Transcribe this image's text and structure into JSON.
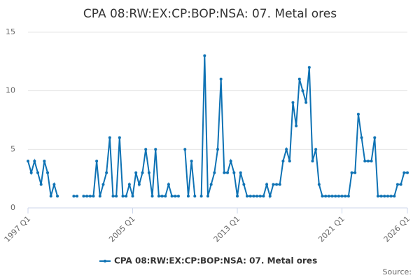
{
  "chart_data": {
    "type": "line",
    "title": "CPA 08:RW:EX:CP:BOP:NSA: 07. Metal ores",
    "source": "Source:",
    "categories": [
      "1997 Q1",
      null,
      null,
      null,
      null,
      null,
      null,
      null,
      null,
      null,
      null,
      null,
      null,
      null,
      null,
      null,
      null,
      null,
      null,
      null,
      null,
      null,
      null,
      null,
      null,
      null,
      null,
      null,
      null,
      null,
      null,
      null,
      "2005 Q1",
      null,
      null,
      null,
      null,
      null,
      null,
      null,
      null,
      null,
      null,
      null,
      null,
      null,
      null,
      null,
      null,
      null,
      null,
      null,
      null,
      null,
      null,
      null,
      null,
      null,
      null,
      null,
      null,
      null,
      null,
      null,
      "2013 Q1",
      null,
      null,
      null,
      null,
      null,
      null,
      null,
      null,
      null,
      null,
      null,
      null,
      null,
      null,
      null,
      null,
      null,
      null,
      null,
      null,
      null,
      null,
      null,
      null,
      null,
      null,
      null,
      null,
      null,
      null,
      null,
      "2021 Q1",
      null,
      null,
      null,
      null,
      null,
      null,
      null,
      null,
      null,
      null,
      null,
      null,
      null,
      null,
      null,
      null,
      null,
      null,
      null,
      "2026 Q1"
    ],
    "series": [
      {
        "name": "CPA 08:RW:EX:CP:BOP:NSA: 07. Metal ores",
        "color": "#0e72b4",
        "values": [
          4,
          3,
          4,
          3,
          2,
          4,
          3,
          1,
          2,
          1,
          null,
          null,
          null,
          null,
          1,
          1,
          null,
          1,
          1,
          1,
          1,
          4,
          1,
          2,
          3,
          6,
          1,
          1,
          6,
          1,
          1,
          2,
          1,
          3,
          2,
          3,
          5,
          3,
          1,
          5,
          1,
          1,
          1,
          2,
          1,
          1,
          1,
          null,
          5,
          1,
          4,
          1,
          null,
          1,
          13,
          1,
          2,
          3,
          5,
          11,
          3,
          3,
          4,
          3,
          1,
          3,
          2,
          1,
          1,
          1,
          1,
          1,
          1,
          2,
          1,
          2,
          2,
          2,
          4,
          5,
          4,
          9,
          7,
          11,
          10,
          9,
          12,
          4,
          5,
          2,
          1,
          1,
          1,
          1,
          1,
          1,
          1,
          1,
          1,
          3,
          3,
          8,
          6,
          4,
          4,
          4,
          6,
          1,
          1,
          1,
          1,
          1,
          1,
          2,
          2,
          3,
          3
        ]
      }
    ],
    "ylim": [
      0,
      15
    ],
    "yticks": [
      0,
      5,
      10,
      15
    ],
    "grid": true,
    "legend": "bottom"
  }
}
